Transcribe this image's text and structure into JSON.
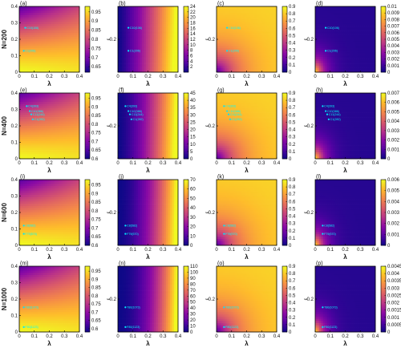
{
  "chart_data": [
    {
      "panel": "(a)",
      "row": "N=200",
      "type": "heatmap",
      "colormap": "plasma",
      "xlabel": "λ",
      "ylabel_printed": false,
      "x_ticks": [
        "0",
        "0.1",
        "0.2",
        "0.3",
        "0.4"
      ],
      "y_ticks": [
        "0",
        "0.1",
        "0.2",
        "0.3",
        "0.4"
      ],
      "colorbar_ticks": [
        "0.65",
        "0.7",
        "0.75",
        "0.8",
        "0.85",
        "0.9",
        "0.95"
      ],
      "xlim": [
        0,
        0.4
      ],
      "ylim": [
        0,
        0.4
      ],
      "clim": [
        0.62,
        0.98
      ],
      "points": [
        {
          "label": "C10(106)",
          "x": 0.04,
          "y": 0.27
        },
        {
          "label": "C1(206)",
          "x": 0.03,
          "y": 0.13
        }
      ]
    },
    {
      "panel": "(b)",
      "row": "N=200",
      "type": "heatmap",
      "colormap": "plasma",
      "xlabel": "λ",
      "ylabel": "ε",
      "x_ticks": [
        "0",
        "0.1",
        "0.2",
        "0.3",
        "0.4"
      ],
      "y_ticks": [
        "0.2"
      ],
      "colorbar_ticks": [
        "2",
        "4",
        "6",
        "8",
        "10",
        "12",
        "14",
        "16",
        "18",
        "20",
        "22",
        "24"
      ],
      "xlim": [
        0,
        0.4
      ],
      "ylim": [
        0,
        0.4
      ],
      "clim": [
        0,
        24
      ],
      "points": [
        {
          "label": "C10(106)",
          "x": 0.07,
          "y": 0.27
        },
        {
          "label": "C1(206)",
          "x": 0.07,
          "y": 0.13
        }
      ]
    },
    {
      "panel": "(c)",
      "row": "N=200",
      "type": "heatmap",
      "colormap": "plasma",
      "xlabel": "λ",
      "ylabel": "ε",
      "x_ticks": [
        "0",
        "0.1",
        "0.2",
        "0.3",
        "0.4"
      ],
      "y_ticks": [
        "0.2"
      ],
      "colorbar_ticks": [
        "0",
        "0.1",
        "0.2",
        "0.3",
        "0.4",
        "0.5",
        "0.6",
        "0.7",
        "0.8",
        "0.9"
      ],
      "xlim": [
        0,
        0.4
      ],
      "ylim": [
        0,
        0.4
      ],
      "clim": [
        0,
        0.9
      ],
      "points": [
        {
          "label": "C10(106)",
          "x": 0.07,
          "y": 0.27
        },
        {
          "label": "C1(206)",
          "x": 0.07,
          "y": 0.13
        }
      ]
    },
    {
      "panel": "(d)",
      "row": "N=200",
      "type": "heatmap",
      "colormap": "plasma",
      "xlabel": "λ",
      "ylabel": "ε",
      "x_ticks": [
        "0",
        "0.1",
        "0.2",
        "0.3",
        "0.4"
      ],
      "y_ticks": [
        "0.2"
      ],
      "colorbar_ticks": [
        "0",
        "0.001",
        "0.002",
        "0.003",
        "0.004",
        "0.005",
        "0.006",
        "0.007",
        "0.008",
        "0.009",
        "0.01"
      ],
      "xlim": [
        0,
        0.4
      ],
      "ylim": [
        0,
        0.4
      ],
      "clim": [
        0,
        0.01
      ],
      "points": [
        {
          "label": "C10(106)",
          "x": 0.07,
          "y": 0.27
        },
        {
          "label": "C1(206)",
          "x": 0.07,
          "y": 0.13
        }
      ]
    },
    {
      "panel": "(e)",
      "row": "N=400",
      "type": "heatmap",
      "colormap": "plasma",
      "xlabel": "λ",
      "ylabel_printed": false,
      "x_ticks": [
        "0",
        "0.1",
        "0.2",
        "0.3",
        "0.4"
      ],
      "y_ticks": [
        "0",
        "0.1",
        "0.2",
        "0.3",
        "0.4"
      ],
      "colorbar_ticks": [
        "0.6",
        "0.65",
        "0.7",
        "0.75",
        "0.8",
        "0.85",
        "0.9",
        "0.95"
      ],
      "xlim": [
        0,
        0.4
      ],
      "ylim": [
        0,
        0.4
      ],
      "clim": [
        0.6,
        0.98
      ],
      "points": [
        {
          "label": "C4(393)",
          "x": 0.05,
          "y": 0.32
        },
        {
          "label": "C10(386)",
          "x": 0.07,
          "y": 0.29
        },
        {
          "label": "C11(244)",
          "x": 0.08,
          "y": 0.27
        },
        {
          "label": "C1(282)",
          "x": 0.09,
          "y": 0.24
        }
      ]
    },
    {
      "panel": "(f)",
      "row": "N=400",
      "type": "heatmap",
      "colormap": "plasma",
      "xlabel": "λ",
      "ylabel": "ε",
      "x_ticks": [
        "0",
        "0.1",
        "0.2",
        "0.3",
        "0.4"
      ],
      "y_ticks": [
        "0.2"
      ],
      "colorbar_ticks": [
        "0",
        "5",
        "10",
        "15",
        "20",
        "25",
        "30",
        "35",
        "40",
        "45"
      ],
      "xlim": [
        0,
        0.4
      ],
      "ylim": [
        0,
        0.4
      ],
      "clim": [
        0,
        45
      ],
      "points": [
        {
          "label": "C4(393)",
          "x": 0.05,
          "y": 0.32
        },
        {
          "label": "C10(386)",
          "x": 0.07,
          "y": 0.29
        },
        {
          "label": "C11(244)",
          "x": 0.08,
          "y": 0.27
        },
        {
          "label": "C1(282)",
          "x": 0.09,
          "y": 0.24
        }
      ]
    },
    {
      "panel": "(g)",
      "row": "N=400",
      "type": "heatmap",
      "colormap": "plasma",
      "xlabel": "λ",
      "ylabel": "ε",
      "x_ticks": [
        "0",
        "0.1",
        "0.2",
        "0.3",
        "0.4"
      ],
      "y_ticks": [
        "0.2"
      ],
      "colorbar_ticks": [
        "0",
        "0.1",
        "0.2",
        "0.3",
        "0.4",
        "0.5",
        "0.6",
        "0.7",
        "0.8",
        "0.9"
      ],
      "xlim": [
        0,
        0.4
      ],
      "ylim": [
        0,
        0.4
      ],
      "clim": [
        0,
        0.9
      ],
      "points": [
        {
          "label": "C4(393)",
          "x": 0.05,
          "y": 0.32
        },
        {
          "label": "C10(386)",
          "x": 0.07,
          "y": 0.29
        },
        {
          "label": "C11(244)",
          "x": 0.08,
          "y": 0.27
        },
        {
          "label": "C1(282)",
          "x": 0.09,
          "y": 0.24
        }
      ]
    },
    {
      "panel": "(h)",
      "row": "N=400",
      "type": "heatmap",
      "colormap": "plasma",
      "xlabel": "λ",
      "ylabel": "ε",
      "x_ticks": [
        "0",
        "0.1",
        "0.2",
        "0.3",
        "0.4"
      ],
      "y_ticks": [
        "0.2"
      ],
      "colorbar_ticks": [
        "0",
        "0.001",
        "0.002",
        "0.003",
        "0.004",
        "0.005",
        "0.006",
        "0.007"
      ],
      "xlim": [
        0,
        0.4
      ],
      "ylim": [
        0,
        0.4
      ],
      "clim": [
        0,
        0.007
      ],
      "points": [
        {
          "label": "C4(393)",
          "x": 0.05,
          "y": 0.32
        },
        {
          "label": "C10(386)",
          "x": 0.07,
          "y": 0.29
        },
        {
          "label": "C11(244)",
          "x": 0.08,
          "y": 0.27
        },
        {
          "label": "C1(282)",
          "x": 0.09,
          "y": 0.24
        }
      ]
    },
    {
      "panel": "(i)",
      "row": "N=600",
      "type": "heatmap",
      "colormap": "plasma",
      "xlabel": "λ",
      "ylabel_printed": false,
      "x_ticks": [
        "0",
        "0.1",
        "0.2",
        "0.3",
        "0.4"
      ],
      "y_ticks": [
        "0",
        "0.1",
        "0.2",
        "0.3",
        "0.4"
      ],
      "colorbar_ticks": [
        "0.6",
        "0.65",
        "0.7",
        "0.75",
        "0.8",
        "0.85",
        "0.9",
        "0.95"
      ],
      "xlim": [
        0,
        0.4
      ],
      "ylim": [
        0,
        0.4
      ],
      "clim": [
        0.6,
        0.98
      ],
      "points": [
        {
          "label": "C8(582)",
          "x": 0.03,
          "y": 0.12
        },
        {
          "label": "F79(570)",
          "x": 0.03,
          "y": 0.07
        }
      ]
    },
    {
      "panel": "(j)",
      "row": "N=600",
      "type": "heatmap",
      "colormap": "plasma",
      "xlabel": "λ",
      "ylabel": "ε",
      "x_ticks": [
        "0",
        "0.1",
        "0.2",
        "0.3",
        "0.4"
      ],
      "y_ticks": [
        "0.2"
      ],
      "colorbar_ticks": [
        "0",
        "10",
        "20",
        "30",
        "40",
        "50",
        "60",
        "70"
      ],
      "xlim": [
        0,
        0.4
      ],
      "ylim": [
        0,
        0.4
      ],
      "clim": [
        0,
        70
      ],
      "points": [
        {
          "label": "C8(582)",
          "x": 0.05,
          "y": 0.12
        },
        {
          "label": "F79(570)",
          "x": 0.05,
          "y": 0.07
        }
      ]
    },
    {
      "panel": "(k)",
      "row": "N=600",
      "type": "heatmap",
      "colormap": "plasma",
      "xlabel": "λ",
      "ylabel": "ε",
      "x_ticks": [
        "0",
        "0.1",
        "0.2",
        "0.3",
        "0.4"
      ],
      "y_ticks": [
        "0.2"
      ],
      "colorbar_ticks": [
        "0",
        "0.1",
        "0.2",
        "0.3",
        "0.4",
        "0.5",
        "0.6",
        "0.7",
        "0.8",
        "0.9"
      ],
      "xlim": [
        0,
        0.4
      ],
      "ylim": [
        0,
        0.4
      ],
      "clim": [
        0,
        0.9
      ],
      "points": [
        {
          "label": "C8(582)",
          "x": 0.05,
          "y": 0.12
        },
        {
          "label": "F79(570)",
          "x": 0.05,
          "y": 0.07
        }
      ]
    },
    {
      "panel": "(l)",
      "row": "N=600",
      "type": "heatmap",
      "colormap": "plasma",
      "xlabel": "λ",
      "ylabel": "ε",
      "x_ticks": [
        "0",
        "0.1",
        "0.2",
        "0.3",
        "0.4"
      ],
      "y_ticks": [
        "0.2"
      ],
      "colorbar_ticks": [
        "0",
        "0.001",
        "0.002",
        "0.003",
        "0.004",
        "0.005",
        "0.006"
      ],
      "xlim": [
        0,
        0.4
      ],
      "ylim": [
        0,
        0.4
      ],
      "clim": [
        0,
        0.006
      ],
      "points": [
        {
          "label": "C8(582)",
          "x": 0.05,
          "y": 0.12
        },
        {
          "label": "F79(570)",
          "x": 0.05,
          "y": 0.07
        }
      ]
    },
    {
      "panel": "(m)",
      "row": "N=1000",
      "type": "heatmap",
      "colormap": "plasma",
      "xlabel": "λ",
      "ylabel_printed": false,
      "x_ticks": [
        "0",
        "0.1",
        "0.2",
        "0.3",
        "0.4"
      ],
      "y_ticks": [
        "0",
        "0.1",
        "0.2",
        "0.3",
        "0.4"
      ],
      "colorbar_ticks": [
        "0.6",
        "0.65",
        "0.7",
        "0.75",
        "0.8",
        "0.85",
        "0.9",
        "0.95"
      ],
      "xlim": [
        0,
        0.4
      ],
      "ylim": [
        0,
        0.4
      ],
      "clim": [
        0.58,
        0.98
      ],
      "points": [
        {
          "label": "T80(1073)",
          "x": 0.03,
          "y": 0.15
        },
        {
          "label": "F80(1123)",
          "x": 0.03,
          "y": 0.03
        }
      ]
    },
    {
      "panel": "(n)",
      "row": "N=1000",
      "type": "heatmap",
      "colormap": "plasma",
      "xlabel": "λ",
      "ylabel": "ε",
      "x_ticks": [
        "0",
        "0.1",
        "0.2",
        "0.3",
        "0.4"
      ],
      "y_ticks": [
        "0.2"
      ],
      "colorbar_ticks": [
        "0",
        "10",
        "20",
        "30",
        "40",
        "50",
        "60",
        "70",
        "80",
        "90",
        "100",
        "110"
      ],
      "xlim": [
        0,
        0.4
      ],
      "ylim": [
        0,
        0.4
      ],
      "clim": [
        0,
        110
      ],
      "points": [
        {
          "label": "T80(1073)",
          "x": 0.05,
          "y": 0.15
        },
        {
          "label": "F80(1123)",
          "x": 0.05,
          "y": 0.03
        }
      ]
    },
    {
      "panel": "(o)",
      "row": "N=1000",
      "type": "heatmap",
      "colormap": "plasma",
      "xlabel": "λ",
      "ylabel": "ε",
      "x_ticks": [
        "0",
        "0.1",
        "0.2",
        "0.3",
        "0.4"
      ],
      "y_ticks": [
        "0.2"
      ],
      "colorbar_ticks": [
        "0",
        "0.1",
        "0.2",
        "0.3",
        "0.4",
        "0.5",
        "0.6",
        "0.7",
        "0.8",
        "0.9"
      ],
      "xlim": [
        0,
        0.4
      ],
      "ylim": [
        0,
        0.4
      ],
      "clim": [
        0,
        0.9
      ],
      "points": [
        {
          "label": "T80(1073)",
          "x": 0.05,
          "y": 0.15
        },
        {
          "label": "F80(1123)",
          "x": 0.05,
          "y": 0.03
        }
      ]
    },
    {
      "panel": "(p)",
      "row": "N=1000",
      "type": "heatmap",
      "colormap": "plasma",
      "xlabel": "λ",
      "ylabel": "ε",
      "x_ticks": [
        "0",
        "0.1",
        "0.2",
        "0.3",
        "0.4"
      ],
      "y_ticks": [
        "0.2"
      ],
      "colorbar_ticks": [
        "0",
        "0.0005",
        "0.001",
        "0.0015",
        "0.002",
        "0.0025",
        "0.003",
        "0.0035",
        "0.004",
        "0.0045"
      ],
      "xlim": [
        0,
        0.4
      ],
      "ylim": [
        0,
        0.4
      ],
      "clim": [
        0,
        0.0045
      ],
      "points": [
        {
          "label": "T80(1073)",
          "x": 0.05,
          "y": 0.15
        },
        {
          "label": "F80(1123)",
          "x": 0.05,
          "y": 0.03
        }
      ]
    }
  ],
  "row_labels": [
    "N=200",
    "N=400",
    "N=600",
    "N=1000"
  ],
  "colors": {
    "point_marker": "#00e5ff",
    "axis": "#000000",
    "background": "#ffffff"
  }
}
